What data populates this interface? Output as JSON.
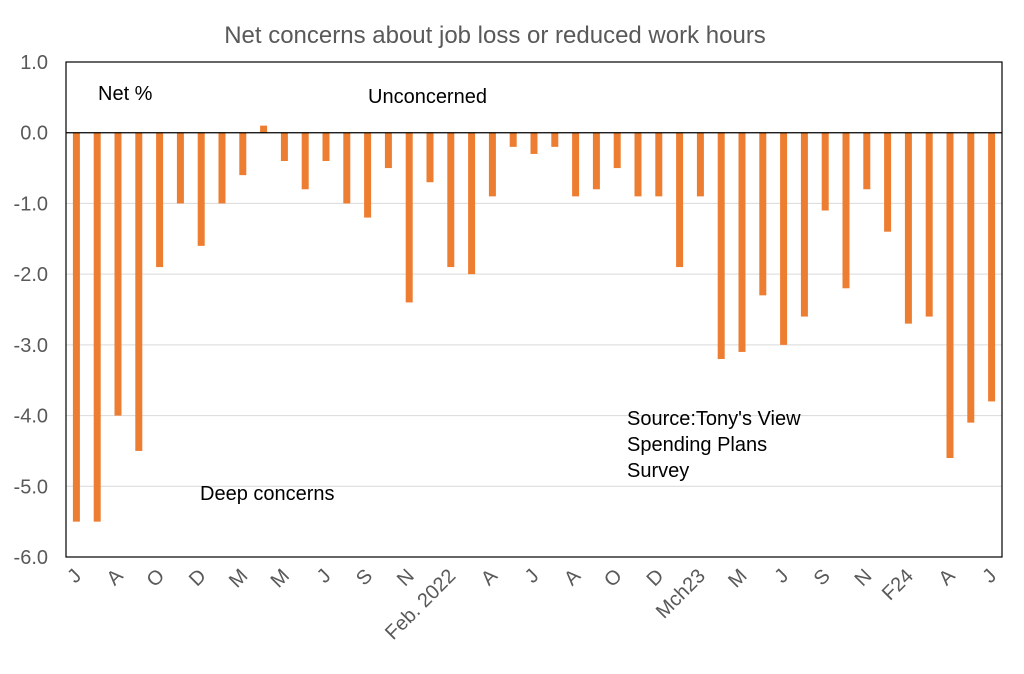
{
  "chart_data": {
    "type": "bar",
    "title": "Net concerns about job loss or reduced work hours",
    "ylim": [
      -6.0,
      1.0
    ],
    "ytick_step": 1.0,
    "ytick_decimals": 1,
    "grid": true,
    "bar_color": "#ED7D31",
    "annotations": {
      "net": "Net %",
      "unconcerned": "Unconcerned",
      "deep": "Deep concerns",
      "source": [
        "Source:Tony's View",
        "Spending Plans",
        "Survey"
      ]
    },
    "tick_labels": [
      "J",
      "A",
      "O",
      "D",
      "M",
      "M",
      "J",
      "S",
      "N",
      "Feb. 2022",
      "A",
      "J",
      "A",
      "O",
      "D",
      "Mch23",
      "M",
      "J",
      "S",
      "N",
      "F24",
      "A",
      "J"
    ],
    "tick_positions": [
      0,
      2,
      4,
      6,
      8,
      10,
      12,
      14,
      16,
      18,
      20,
      22,
      24,
      26,
      28,
      30,
      32,
      34,
      36,
      38,
      40,
      42,
      44
    ],
    "values": [
      -5.5,
      -5.5,
      -4.0,
      -4.5,
      -1.9,
      -1.0,
      -1.6,
      -1.0,
      -0.6,
      0.1,
      -0.4,
      -0.8,
      -0.4,
      -1.0,
      -1.2,
      -0.5,
      -2.4,
      -0.7,
      -1.9,
      -2.0,
      -0.9,
      -0.2,
      -0.3,
      -0.2,
      -0.9,
      -0.8,
      -0.5,
      -0.9,
      -0.9,
      -1.9,
      -0.9,
      -3.2,
      -3.1,
      -2.3,
      -3.0,
      -2.6,
      -1.1,
      -2.2,
      -0.8,
      -1.4,
      -2.7,
      -2.6,
      -4.6,
      -4.1,
      -3.8
    ]
  }
}
